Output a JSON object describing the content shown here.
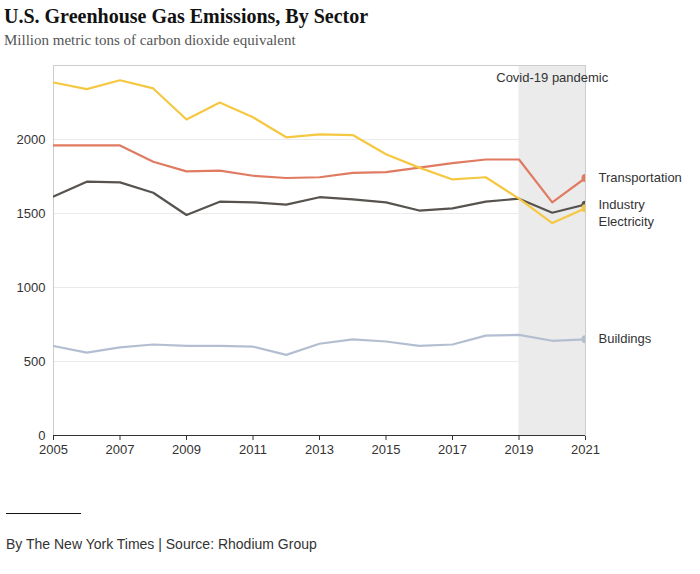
{
  "chart_data": {
    "type": "line",
    "title": "U.S. Greenhouse Gas Emissions, By Sector",
    "subtitle": "Million metric tons of carbon dioxide equivalent",
    "caption": "By The New York Times | Source: Rhodium Group",
    "x": [
      2005,
      2006,
      2007,
      2008,
      2009,
      2010,
      2011,
      2012,
      2013,
      2014,
      2015,
      2016,
      2017,
      2018,
      2019,
      2020,
      2021
    ],
    "series": [
      {
        "name": "Transportation",
        "color": "#e07b62",
        "values": [
          1960,
          1960,
          1960,
          1850,
          1785,
          1790,
          1755,
          1740,
          1745,
          1775,
          1780,
          1810,
          1840,
          1865,
          1865,
          1575,
          1740
        ]
      },
      {
        "name": "Industry",
        "color": "#57534f",
        "values": [
          1615,
          1715,
          1710,
          1640,
          1490,
          1580,
          1575,
          1560,
          1610,
          1595,
          1575,
          1520,
          1535,
          1580,
          1600,
          1505,
          1560
        ]
      },
      {
        "name": "Electricity",
        "color": "#f5c842",
        "values": [
          2385,
          2340,
          2400,
          2345,
          2135,
          2250,
          2150,
          2015,
          2035,
          2030,
          1900,
          1810,
          1730,
          1745,
          1600,
          1435,
          1535
        ]
      },
      {
        "name": "Buildings",
        "color": "#b3bfd1",
        "values": [
          605,
          560,
          595,
          615,
          605,
          605,
          600,
          545,
          620,
          650,
          635,
          605,
          615,
          675,
          680,
          640,
          650
        ]
      }
    ],
    "annotations": [
      {
        "label": "Covid-19 pandemic",
        "x_start": 2019,
        "x_end": 2021
      }
    ],
    "xlim": [
      2005,
      2021
    ],
    "xticks": [
      2005,
      2007,
      2009,
      2011,
      2013,
      2015,
      2017,
      2019,
      2021
    ],
    "ylim": [
      0,
      2500
    ],
    "yticks": [
      0,
      500,
      1000,
      1500,
      2000
    ],
    "grid": true
  }
}
